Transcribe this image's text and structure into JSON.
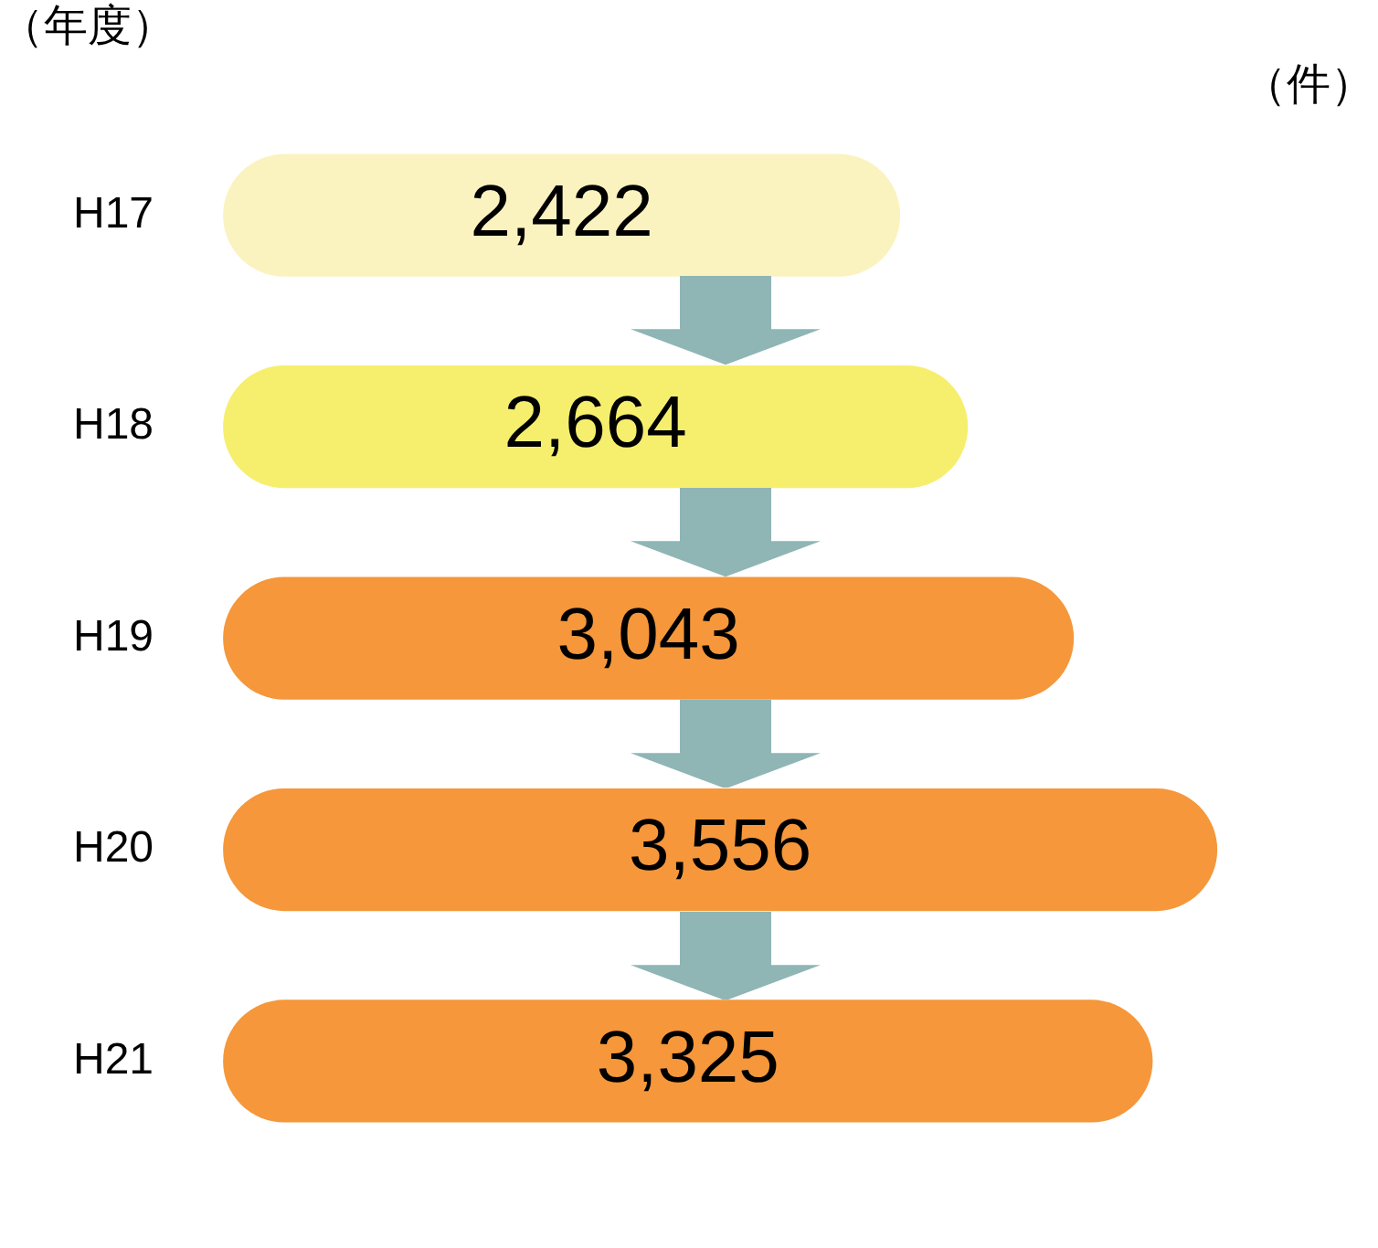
{
  "chart_data": {
    "type": "bar",
    "orientation": "horizontal",
    "ylabel": "（年度）",
    "xlabel": "（件）",
    "categories": [
      "H17",
      "H18",
      "H19",
      "H20",
      "H21"
    ],
    "values": [
      2422,
      2664,
      3043,
      3556,
      3325
    ],
    "value_labels": [
      "2,422",
      "2,664",
      "3,043",
      "3,556",
      "3,325"
    ],
    "colors": [
      "#fbf3bf",
      "#f6ef6e",
      "#f5973a",
      "#f5973a",
      "#f5973a"
    ],
    "legend": false
  }
}
